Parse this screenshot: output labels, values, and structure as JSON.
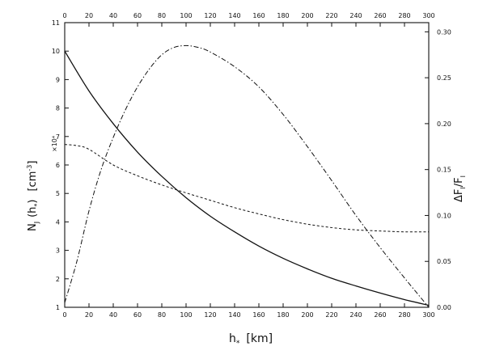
{
  "chart_data": {
    "type": "line",
    "xlabel": "h_* [km]",
    "xlabel_main": "h",
    "xlabel_sub": "*",
    "xlabel_unit": "[km]",
    "ylabel_left": "N_j (h_*) [cm^-3]",
    "ylabel_left_main": "N",
    "ylabel_left_sub": "J",
    "ylabel_left_paren": "(h",
    "ylabel_left_paren_sub": "*",
    "ylabel_left_close": ")",
    "ylabel_left_unit": "[cm",
    "ylabel_left_exp": "-3",
    "ylabel_left_unit_close": "]",
    "ylabel_left_scale": "×10⁴",
    "ylabel_right": "ΔF_I/F_I",
    "ylabel_right_main": "ΔF",
    "ylabel_right_sub1": "I",
    "ylabel_right_slash": "/F",
    "ylabel_right_sub2": "I",
    "xlim": [
      0,
      300
    ],
    "ylim_left": [
      1,
      11
    ],
    "ylim_right": [
      0,
      0.31
    ],
    "x_ticks": [
      0,
      20,
      40,
      60,
      80,
      100,
      120,
      140,
      160,
      180,
      200,
      220,
      240,
      260,
      280,
      300
    ],
    "y_left_ticks": [
      1,
      2,
      3,
      4,
      5,
      6,
      7,
      8,
      9,
      10,
      11
    ],
    "y_right_ticks": [
      "0.00",
      "0.05",
      "0.10",
      "0.15",
      "0.20",
      "0.25",
      "0.30"
    ],
    "grid": false,
    "series": [
      {
        "style": "solid",
        "axis": "left",
        "x": [
          0,
          20,
          40,
          60,
          80,
          100,
          120,
          140,
          160,
          180,
          200,
          220,
          240,
          260,
          280,
          300
        ],
        "y": [
          10.0,
          8.6,
          7.45,
          6.45,
          5.6,
          4.85,
          4.2,
          3.65,
          3.15,
          2.72,
          2.35,
          2.02,
          1.75,
          1.5,
          1.27,
          1.07
        ]
      },
      {
        "style": "dashed",
        "axis": "left",
        "x": [
          0,
          10,
          20,
          40,
          60,
          80,
          100,
          120,
          140,
          160,
          180,
          200,
          220,
          240,
          260,
          280,
          300
        ],
        "y": [
          6.72,
          6.68,
          6.55,
          6.0,
          5.62,
          5.3,
          5.02,
          4.76,
          4.5,
          4.28,
          4.08,
          3.92,
          3.8,
          3.72,
          3.68,
          3.65,
          3.65
        ]
      },
      {
        "style": "dash-dot",
        "axis": "right",
        "x": [
          0,
          10,
          20,
          30,
          40,
          50,
          60,
          70,
          80,
          90,
          100,
          110,
          120,
          140,
          160,
          180,
          200,
          220,
          240,
          260,
          280,
          300
        ],
        "y": [
          0.005,
          0.05,
          0.105,
          0.15,
          0.185,
          0.215,
          0.24,
          0.26,
          0.275,
          0.283,
          0.285,
          0.283,
          0.278,
          0.262,
          0.24,
          0.21,
          0.175,
          0.138,
          0.1,
          0.065,
          0.032,
          0.0
        ]
      }
    ]
  }
}
